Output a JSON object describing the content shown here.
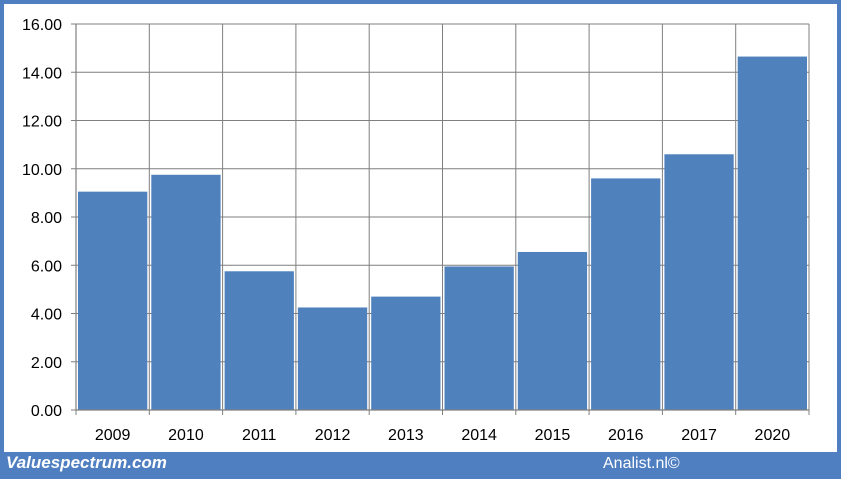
{
  "colors": {
    "frame": "#4f7fc0",
    "bar": "#4f81bd",
    "grid": "#7f7f7f",
    "text": "#000000"
  },
  "footer": {
    "brand": "Valuespectrum.com",
    "credit": "Analist.nl©"
  },
  "chart_data": {
    "type": "bar",
    "categories": [
      "2009",
      "2010",
      "2011",
      "2012",
      "2013",
      "2014",
      "2015",
      "2016",
      "2017",
      "2020"
    ],
    "values": [
      9.05,
      9.75,
      5.75,
      4.25,
      4.7,
      5.95,
      6.55,
      9.6,
      10.6,
      14.65
    ],
    "ylim": [
      0,
      16
    ],
    "yticks": [
      "0.00",
      "2.00",
      "4.00",
      "6.00",
      "8.00",
      "10.00",
      "12.00",
      "14.00",
      "16.00"
    ],
    "grid": true,
    "title": "",
    "xlabel": "",
    "ylabel": ""
  }
}
